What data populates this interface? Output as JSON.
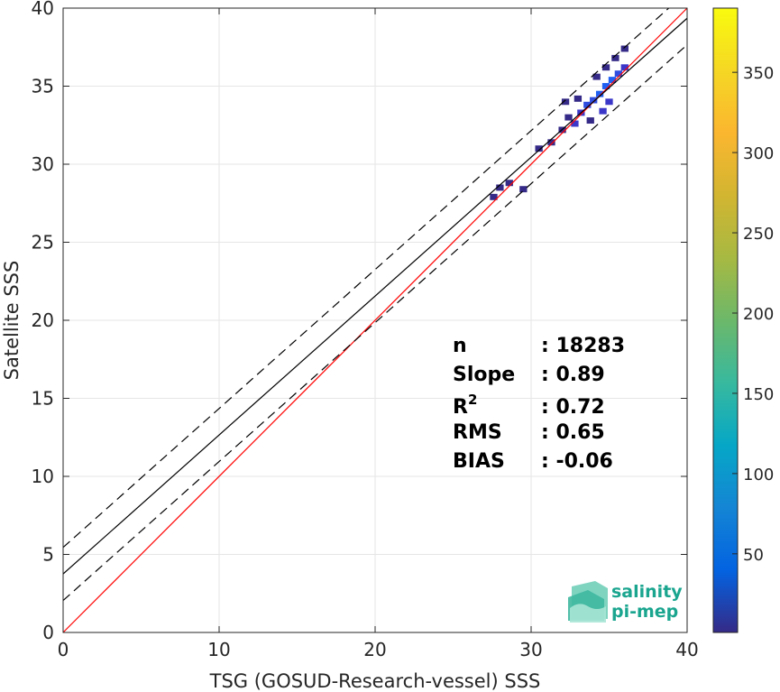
{
  "chart_data": {
    "type": "heatmap",
    "title": "",
    "xlabel": "TSG (GOSUD-Research-vessel) SSS",
    "ylabel": "Satellite SSS",
    "xlim": [
      0,
      40
    ],
    "ylim": [
      0,
      40
    ],
    "xticks": [
      0,
      10,
      20,
      30,
      40
    ],
    "yticks": [
      0,
      5,
      10,
      15,
      20,
      25,
      30,
      35,
      40
    ],
    "grid": true,
    "colorbar": {
      "range": [
        1,
        390
      ],
      "ticks": [
        50,
        100,
        150,
        200,
        250,
        300,
        350
      ],
      "colormap": "parula"
    },
    "density_cells": [
      {
        "x": 27.6,
        "y": 27.9,
        "count": 3
      },
      {
        "x": 28.0,
        "y": 28.5,
        "count": 6
      },
      {
        "x": 28.6,
        "y": 28.8,
        "count": 4
      },
      {
        "x": 29.5,
        "y": 28.4,
        "count": 3
      },
      {
        "x": 30.5,
        "y": 31.0,
        "count": 3
      },
      {
        "x": 31.3,
        "y": 31.4,
        "count": 3
      },
      {
        "x": 32.0,
        "y": 32.2,
        "count": 6
      },
      {
        "x": 32.4,
        "y": 33.0,
        "count": 10
      },
      {
        "x": 32.8,
        "y": 32.6,
        "count": 14
      },
      {
        "x": 33.2,
        "y": 33.3,
        "count": 20
      },
      {
        "x": 33.6,
        "y": 33.8,
        "count": 26
      },
      {
        "x": 34.0,
        "y": 34.1,
        "count": 32
      },
      {
        "x": 34.4,
        "y": 34.5,
        "count": 40
      },
      {
        "x": 34.8,
        "y": 35.0,
        "count": 45
      },
      {
        "x": 35.2,
        "y": 35.4,
        "count": 38
      },
      {
        "x": 35.6,
        "y": 35.8,
        "count": 24
      },
      {
        "x": 36.0,
        "y": 36.2,
        "count": 14
      },
      {
        "x": 35.4,
        "y": 36.8,
        "count": 8
      },
      {
        "x": 36.0,
        "y": 37.4,
        "count": 5
      },
      {
        "x": 34.2,
        "y": 35.6,
        "count": 10
      },
      {
        "x": 33.0,
        "y": 34.2,
        "count": 8
      },
      {
        "x": 34.6,
        "y": 33.4,
        "count": 12
      },
      {
        "x": 33.8,
        "y": 32.8,
        "count": 10
      },
      {
        "x": 35.0,
        "y": 34.0,
        "count": 18
      },
      {
        "x": 32.2,
        "y": 34.0,
        "count": 4
      },
      {
        "x": 34.8,
        "y": 36.2,
        "count": 9
      }
    ],
    "lines": [
      {
        "name": "1:1",
        "slope": 1,
        "intercept": 0,
        "color": "#ff0000",
        "style": "solid"
      },
      {
        "name": "fit",
        "slope": 0.89,
        "intercept": 3.75,
        "color": "#000000",
        "style": "solid"
      },
      {
        "name": "fit+",
        "slope": 0.89,
        "intercept": 5.45,
        "color": "#000000",
        "style": "dashed"
      },
      {
        "name": "fit-",
        "slope": 0.89,
        "intercept": 2.05,
        "color": "#000000",
        "style": "dashed"
      }
    ],
    "stats": [
      {
        "label": "n",
        "value": ": 18283"
      },
      {
        "label": "Slope",
        "value": ": 0.89"
      },
      {
        "label": "R",
        "sup": "2",
        "value": ": 0.72"
      },
      {
        "label": "RMS",
        "value": ": 0.65"
      },
      {
        "label": "BIAS",
        "value": ": -0.06"
      }
    ]
  },
  "logo": {
    "line1": "salinity",
    "line2": "pi-mep",
    "color": "#1aa58f"
  }
}
